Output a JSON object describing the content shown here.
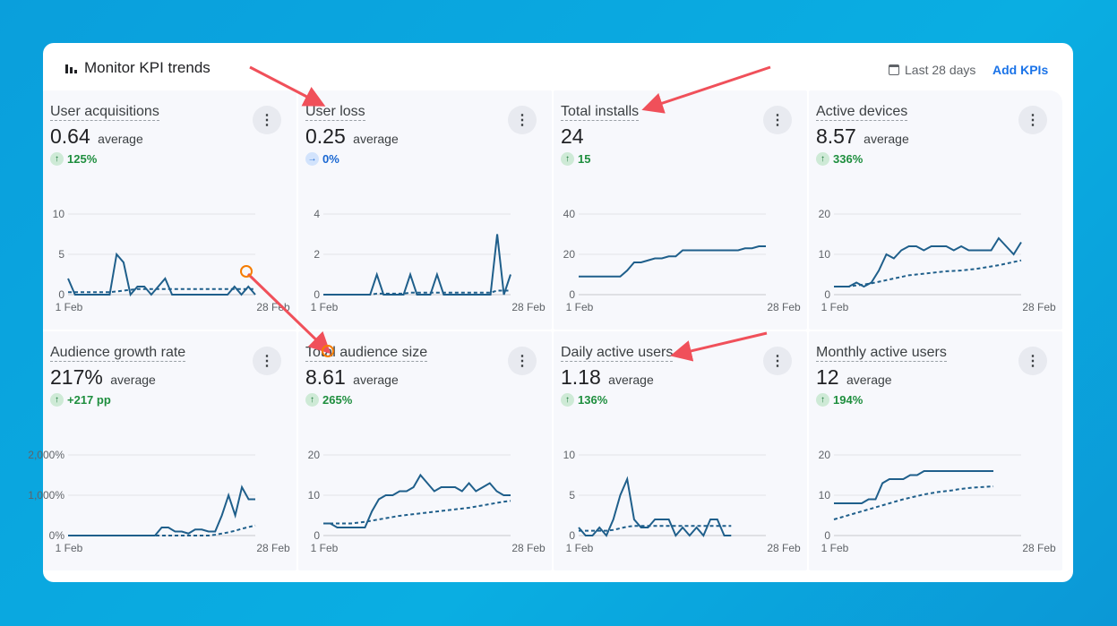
{
  "header": {
    "title": "Monitor KPI trends",
    "date_range": "Last 28 days",
    "add_label": "Add KPIs"
  },
  "colors": {
    "line": "#1f5f8b",
    "accent": "#1a73e8",
    "positive": "#1e8e3e",
    "arrow": "#f0505a"
  },
  "cards": [
    {
      "title": "User acquisitions",
      "value": "0.64",
      "unit": "average",
      "delta": "125%",
      "trend": "up",
      "chart_data": {
        "type": "line",
        "x_labels": [
          "1 Feb",
          "28 Feb"
        ],
        "y_ticks": [
          "0",
          "5",
          "10"
        ],
        "ylim": [
          0,
          10
        ],
        "series": [
          {
            "style": "solid",
            "values": [
              2,
              0,
              0,
              0,
              0,
              0,
              0,
              5,
              4,
              0,
              1,
              1,
              0,
              1,
              2,
              0,
              0,
              0,
              0,
              0,
              0,
              0,
              0,
              0,
              1,
              0,
              1,
              0
            ]
          },
          {
            "style": "dashed",
            "values": [
              0.3,
              0.3,
              0.3,
              0.3,
              0.3,
              0.3,
              0.3,
              0.4,
              0.5,
              0.6,
              0.7,
              0.7,
              0.7,
              0.7,
              0.7,
              0.7,
              0.7,
              0.7,
              0.7,
              0.7,
              0.7,
              0.7,
              0.7,
              0.7,
              0.7,
              0.7,
              0.7,
              0.7
            ]
          }
        ]
      }
    },
    {
      "title": "User loss",
      "value": "0.25",
      "unit": "average",
      "delta": "0%",
      "trend": "flat",
      "chart_data": {
        "type": "line",
        "x_labels": [
          "1 Feb",
          "28 Feb"
        ],
        "y_ticks": [
          "0",
          "2",
          "4"
        ],
        "ylim": [
          0,
          4
        ],
        "series": [
          {
            "style": "solid",
            "values": [
              0,
              0,
              0,
              0,
              0,
              0,
              0,
              0,
              1,
              0,
              0,
              0,
              0,
              1,
              0,
              0,
              0,
              1,
              0,
              0,
              0,
              0,
              0,
              0,
              0,
              0,
              3,
              0,
              1
            ]
          },
          {
            "style": "dashed",
            "values": [
              0,
              0,
              0,
              0,
              0,
              0,
              0,
              0,
              0.05,
              0.05,
              0.05,
              0.05,
              0.05,
              0.1,
              0.1,
              0.1,
              0.1,
              0.1,
              0.1,
              0.1,
              0.1,
              0.1,
              0.1,
              0.1,
              0.1,
              0.1,
              0.2,
              0.2,
              0.2
            ]
          }
        ]
      }
    },
    {
      "title": "Total installs",
      "value": "24",
      "unit": "",
      "delta": "15",
      "trend": "up",
      "chart_data": {
        "type": "line",
        "x_labels": [
          "1 Feb",
          "28 Feb"
        ],
        "y_ticks": [
          "0",
          "20",
          "40"
        ],
        "ylim": [
          0,
          40
        ],
        "series": [
          {
            "style": "solid",
            "values": [
              9,
              9,
              9,
              9,
              9,
              9,
              9,
              12,
              16,
              16,
              17,
              18,
              18,
              19,
              19,
              22,
              22,
              22,
              22,
              22,
              22,
              22,
              22,
              22,
              23,
              23,
              24,
              24
            ]
          }
        ]
      }
    },
    {
      "title": "Active devices",
      "value": "8.57",
      "unit": "average",
      "delta": "336%",
      "trend": "up",
      "chart_data": {
        "type": "line",
        "x_labels": [
          "1 Feb",
          "28 Feb"
        ],
        "y_ticks": [
          "0",
          "10",
          "20"
        ],
        "ylim": [
          0,
          20
        ],
        "series": [
          {
            "style": "solid",
            "values": [
              2,
              2,
              2,
              3,
              2,
              3,
              6,
              10,
              9,
              11,
              12,
              12,
              11,
              12,
              12,
              12,
              11,
              12,
              11,
              11,
              11,
              11,
              14,
              12,
              10,
              13
            ]
          },
          {
            "style": "dashed",
            "values": [
              2,
              2,
              2,
              2.3,
              2.5,
              2.8,
              3.2,
              3.6,
              4,
              4.4,
              4.8,
              5,
              5.2,
              5.4,
              5.6,
              5.8,
              5.9,
              6,
              6.2,
              6.4,
              6.7,
              7,
              7.3,
              7.7,
              8.1,
              8.5
            ]
          }
        ]
      }
    },
    {
      "title": "Audience growth rate",
      "value": "217%",
      "unit": "average",
      "delta": "+217 pp",
      "trend": "up",
      "chart_data": {
        "type": "line",
        "x_labels": [
          "1 Feb",
          "28 Feb"
        ],
        "y_ticks": [
          "0%",
          "1,000%",
          "2,000%"
        ],
        "ylim": [
          0,
          2000
        ],
        "series": [
          {
            "style": "solid",
            "values": [
              0,
              0,
              0,
              0,
              0,
              0,
              0,
              0,
              0,
              0,
              0,
              0,
              0,
              0,
              200,
              200,
              100,
              100,
              50,
              150,
              150,
              100,
              100,
              500,
              1000,
              500,
              1200,
              900,
              900
            ]
          },
          {
            "style": "dashed",
            "values": [
              0,
              0,
              0,
              0,
              0,
              0,
              0,
              0,
              0,
              0,
              0,
              0,
              0,
              0,
              0,
              0,
              0,
              0,
              0,
              0,
              0,
              0,
              20,
              50,
              80,
              120,
              170,
              210,
              250
            ]
          }
        ]
      }
    },
    {
      "title": "Total audience size",
      "value": "8.61",
      "unit": "average",
      "delta": "265%",
      "trend": "up",
      "chart_data": {
        "type": "line",
        "x_labels": [
          "1 Feb",
          "28 Feb"
        ],
        "y_ticks": [
          "0",
          "10",
          "20"
        ],
        "ylim": [
          0,
          20
        ],
        "series": [
          {
            "style": "solid",
            "values": [
              3,
              3,
              2,
              2,
              2,
              2,
              2,
              6,
              9,
              10,
              10,
              11,
              11,
              12,
              15,
              13,
              11,
              12,
              12,
              12,
              11,
              13,
              11,
              12,
              13,
              11,
              10,
              10
            ]
          },
          {
            "style": "dashed",
            "values": [
              3,
              3,
              3,
              3,
              3,
              3.2,
              3.4,
              3.7,
              4,
              4.3,
              4.6,
              4.9,
              5.1,
              5.3,
              5.5,
              5.7,
              5.9,
              6.1,
              6.3,
              6.5,
              6.7,
              6.9,
              7.2,
              7.5,
              7.8,
              8.1,
              8.4,
              8.6
            ]
          }
        ]
      }
    },
    {
      "title": "Daily active users",
      "value": "1.18",
      "unit": "average",
      "delta": "136%",
      "trend": "up",
      "chart_data": {
        "type": "line",
        "x_labels": [
          "1 Feb",
          "28 Feb"
        ],
        "y_ticks": [
          "0",
          "5",
          "10"
        ],
        "ylim": [
          0,
          10
        ],
        "series": [
          {
            "style": "solid",
            "values": [
              1,
              0,
              0,
              1,
              0,
              2,
              5,
              7,
              2,
              1,
              1,
              2,
              2,
              2,
              0,
              1,
              0,
              1,
              0,
              2,
              2,
              0,
              0,
              null,
              null,
              null,
              null,
              null
            ]
          },
          {
            "style": "dashed",
            "values": [
              0.6,
              0.6,
              0.6,
              0.6,
              0.6,
              0.7,
              0.9,
              1.1,
              1.2,
              1.2,
              1.2,
              1.2,
              1.2,
              1.2,
              1.2,
              1.2,
              1.2,
              1.2,
              1.2,
              1.2,
              1.2,
              1.2,
              1.2,
              null,
              null,
              null,
              null,
              null
            ]
          }
        ]
      }
    },
    {
      "title": "Monthly active users",
      "value": "12",
      "unit": "average",
      "delta": "194%",
      "trend": "up",
      "chart_data": {
        "type": "line",
        "x_labels": [
          "1 Feb",
          "28 Feb"
        ],
        "y_ticks": [
          "0",
          "10",
          "20"
        ],
        "ylim": [
          0,
          20
        ],
        "series": [
          {
            "style": "solid",
            "values": [
              8,
              8,
              8,
              8,
              8,
              9,
              9,
              13,
              14,
              14,
              14,
              15,
              15,
              16,
              16,
              16,
              16,
              16,
              16,
              16,
              16,
              16,
              16,
              16,
              null,
              null,
              null,
              null
            ]
          },
          {
            "style": "dashed",
            "values": [
              4,
              4.5,
              5,
              5.5,
              6,
              6.5,
              7,
              7.5,
              8,
              8.5,
              9,
              9.4,
              9.8,
              10.2,
              10.5,
              10.8,
              11,
              11.2,
              11.5,
              11.7,
              11.9,
              12,
              12.1,
              12.2,
              null,
              null,
              null,
              null
            ]
          }
        ]
      }
    }
  ]
}
